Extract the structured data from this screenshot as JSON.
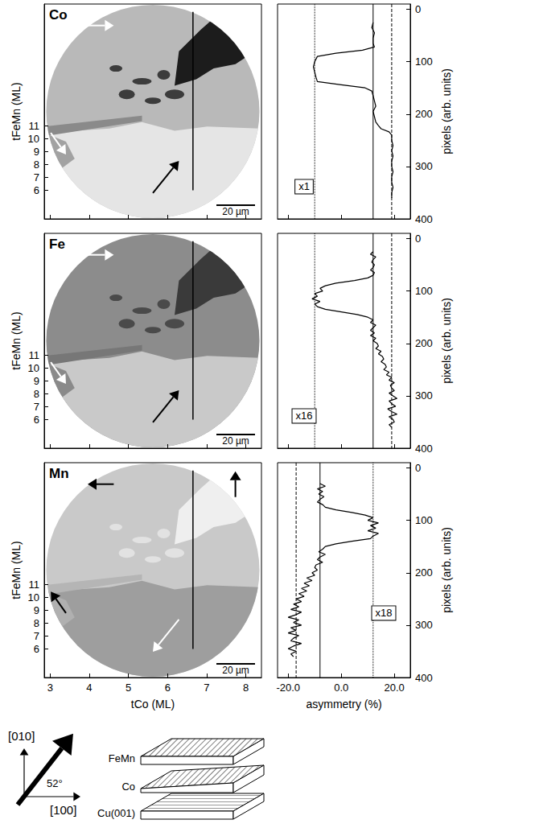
{
  "chart_data": [
    {
      "type": "image",
      "title": "Co",
      "y_label": "tFeMn (ML)",
      "xlim": [
        2.85,
        8.4
      ],
      "xticks": [
        3,
        4,
        5,
        6,
        7,
        8
      ],
      "ylim": [
        3.8,
        20.4
      ],
      "yticks": [
        6,
        7,
        8,
        9,
        10,
        11
      ],
      "tick_labels": "y",
      "grid": false,
      "scale_bar": "20 µm",
      "profile_line": {
        "x": 6.65,
        "y": [
          6,
          19.8
        ]
      }
    },
    {
      "type": "line",
      "y_label": "pixels (arb. units)",
      "annotation": "x1",
      "color": "#000000",
      "line_style": "solid",
      "xlim": [
        -24,
        26
      ],
      "xticks": [
        {
          "value": -20,
          "label": "-20.0"
        },
        {
          "value": 0,
          "label": "0.0"
        },
        {
          "value": 20,
          "label": "20.0"
        }
      ],
      "ylim": [
        -10,
        400
      ],
      "yticks": [
        0,
        100,
        200,
        300,
        400
      ],
      "tick_labels": "y",
      "grid": false,
      "reference_lines": [
        {
          "x": -10,
          "line_style": "dotted"
        },
        {
          "x": 12,
          "line_style": "solid"
        },
        {
          "x": 19,
          "line_style": "dashed"
        }
      ],
      "x": [
        12,
        11.5,
        12.5,
        12,
        12,
        12.5,
        8,
        -2,
        -9,
        -10,
        -10.5,
        -10,
        -9.5,
        -9,
        0,
        9,
        11.5,
        12,
        12.5,
        13,
        12,
        12.5,
        13,
        14,
        15,
        18,
        19,
        19,
        19.5,
        19,
        19.5,
        19,
        19,
        19.5,
        19,
        19,
        19.5,
        19,
        19
      ],
      "y": [
        25,
        35,
        45,
        55,
        65,
        72,
        78,
        84,
        90,
        100,
        110,
        120,
        130,
        138,
        144,
        150,
        156,
        165,
        175,
        185,
        195,
        205,
        215,
        222,
        228,
        234,
        240,
        250,
        260,
        270,
        280,
        290,
        300,
        310,
        320,
        330,
        340,
        350,
        360
      ]
    },
    {
      "type": "image",
      "title": "Fe",
      "y_label": "tFeMn (ML)",
      "xlim": [
        2.85,
        8.4
      ],
      "xticks": [
        3,
        4,
        5,
        6,
        7,
        8
      ],
      "ylim": [
        3.8,
        20.4
      ],
      "yticks": [
        6,
        7,
        8,
        9,
        10,
        11
      ],
      "tick_labels": "y",
      "grid": false,
      "scale_bar": "20 µm",
      "profile_line": {
        "x": 6.65,
        "y": [
          6,
          19.8
        ]
      }
    },
    {
      "type": "line",
      "y_label": "pixels (arb. units)",
      "annotation": "x16",
      "color": "#000000",
      "line_style": "solid",
      "xlim": [
        -24,
        26
      ],
      "xticks": [
        {
          "value": -20,
          "label": "-20.0"
        },
        {
          "value": 0,
          "label": "0.0"
        },
        {
          "value": 20,
          "label": "20.0"
        }
      ],
      "ylim": [
        -10,
        400
      ],
      "yticks": [
        0,
        100,
        200,
        300,
        400
      ],
      "tick_labels": "y",
      "grid": false,
      "reference_lines": [
        {
          "x": -10,
          "line_style": "dotted"
        },
        {
          "x": 12,
          "line_style": "solid"
        },
        {
          "x": 19,
          "line_style": "dashed"
        }
      ],
      "x": [
        12,
        11,
        13,
        12,
        11.5,
        12.5,
        12,
        11,
        12.5,
        12,
        10,
        5,
        -2,
        -6,
        -8,
        -7,
        -10,
        -9,
        -11,
        -8,
        -10,
        -9,
        -6,
        0,
        6,
        10,
        12,
        11,
        13,
        12,
        11,
        12.5,
        11,
        13,
        12,
        13.5,
        14,
        13,
        15,
        14,
        15.5,
        16,
        15,
        16.5,
        17,
        16,
        18,
        17,
        19,
        18,
        20,
        18.5,
        19,
        20,
        18,
        19.5,
        21,
        18,
        19,
        20.5,
        17.5,
        19,
        21,
        18,
        19.5,
        20,
        18,
        19
      ],
      "y": [
        25,
        30,
        35,
        40,
        45,
        50,
        55,
        60,
        65,
        70,
        75,
        80,
        85,
        90,
        95,
        100,
        105,
        110,
        115,
        120,
        125,
        130,
        135,
        140,
        145,
        150,
        155,
        160,
        165,
        170,
        175,
        180,
        185,
        190,
        195,
        200,
        205,
        210,
        215,
        220,
        225,
        230,
        235,
        240,
        245,
        250,
        255,
        260,
        265,
        270,
        275,
        280,
        285,
        290,
        295,
        300,
        305,
        310,
        315,
        320,
        325,
        330,
        335,
        340,
        345,
        350,
        355,
        360
      ]
    },
    {
      "type": "image",
      "title": "Mn",
      "y_label": "tFeMn (ML)",
      "x_label": "tCo (ML)",
      "xlim": [
        2.85,
        8.4
      ],
      "xticks": [
        3,
        4,
        5,
        6,
        7,
        8
      ],
      "ylim": [
        3.8,
        20.4
      ],
      "yticks": [
        6,
        7,
        8,
        9,
        10,
        11
      ],
      "tick_labels": true,
      "grid": false,
      "scale_bar": "20 µm",
      "profile_line": {
        "x": 6.65,
        "y": [
          6,
          19.8
        ]
      }
    },
    {
      "type": "line",
      "y_label": "pixels (arb. units)",
      "x_label": "asymmetry (%)",
      "annotation": "x18",
      "color": "#000000",
      "line_style": "solid",
      "xlim": [
        -24,
        26
      ],
      "xticks": [
        {
          "value": -20,
          "label": "-20.0"
        },
        {
          "value": 0,
          "label": "0.0"
        },
        {
          "value": 20,
          "label": "20.0"
        }
      ],
      "ylim": [
        -10,
        400
      ],
      "yticks": [
        0,
        100,
        200,
        300,
        400
      ],
      "tick_labels": true,
      "grid": false,
      "reference_lines": [
        {
          "x": -17,
          "line_style": "dashed"
        },
        {
          "x": -8,
          "line_style": "solid"
        },
        {
          "x": 12,
          "line_style": "dotted"
        }
      ],
      "x": [
        -8,
        -6,
        -9,
        -7,
        -8.5,
        -6.5,
        -8,
        -9,
        -7,
        -6,
        -2,
        4,
        9,
        12,
        10,
        14,
        11,
        13,
        10,
        14,
        12,
        11,
        4,
        -2,
        -6,
        -7,
        -8.5,
        -6,
        -8,
        -9,
        -7,
        -9.5,
        -10,
        -9,
        -11,
        -10,
        -13,
        -11,
        -14,
        -12,
        -15,
        -13,
        -16,
        -14,
        -17,
        -15,
        -18,
        -16,
        -19,
        -15,
        -17,
        -20,
        -16,
        -18,
        -15,
        -19,
        -17,
        -20,
        -16,
        -18,
        -19,
        -15,
        -18,
        -20,
        -17,
        -19,
        -18
      ],
      "y": [
        30,
        35,
        40,
        45,
        50,
        55,
        60,
        65,
        70,
        75,
        80,
        85,
        90,
        95,
        100,
        105,
        110,
        115,
        120,
        125,
        130,
        135,
        140,
        145,
        150,
        155,
        160,
        165,
        170,
        175,
        180,
        185,
        190,
        195,
        200,
        205,
        210,
        215,
        220,
        225,
        230,
        235,
        240,
        245,
        250,
        255,
        260,
        265,
        270,
        275,
        280,
        285,
        290,
        295,
        300,
        305,
        310,
        315,
        320,
        325,
        330,
        335,
        340,
        345,
        350,
        355,
        360
      ]
    }
  ],
  "diagram": {
    "axis_vertical": "[010]",
    "axis_horizontal": "[100]",
    "angle": {
      "value": 52,
      "label": "52°"
    },
    "layers": [
      "FeMn",
      "Co",
      "Cu(001)"
    ]
  }
}
